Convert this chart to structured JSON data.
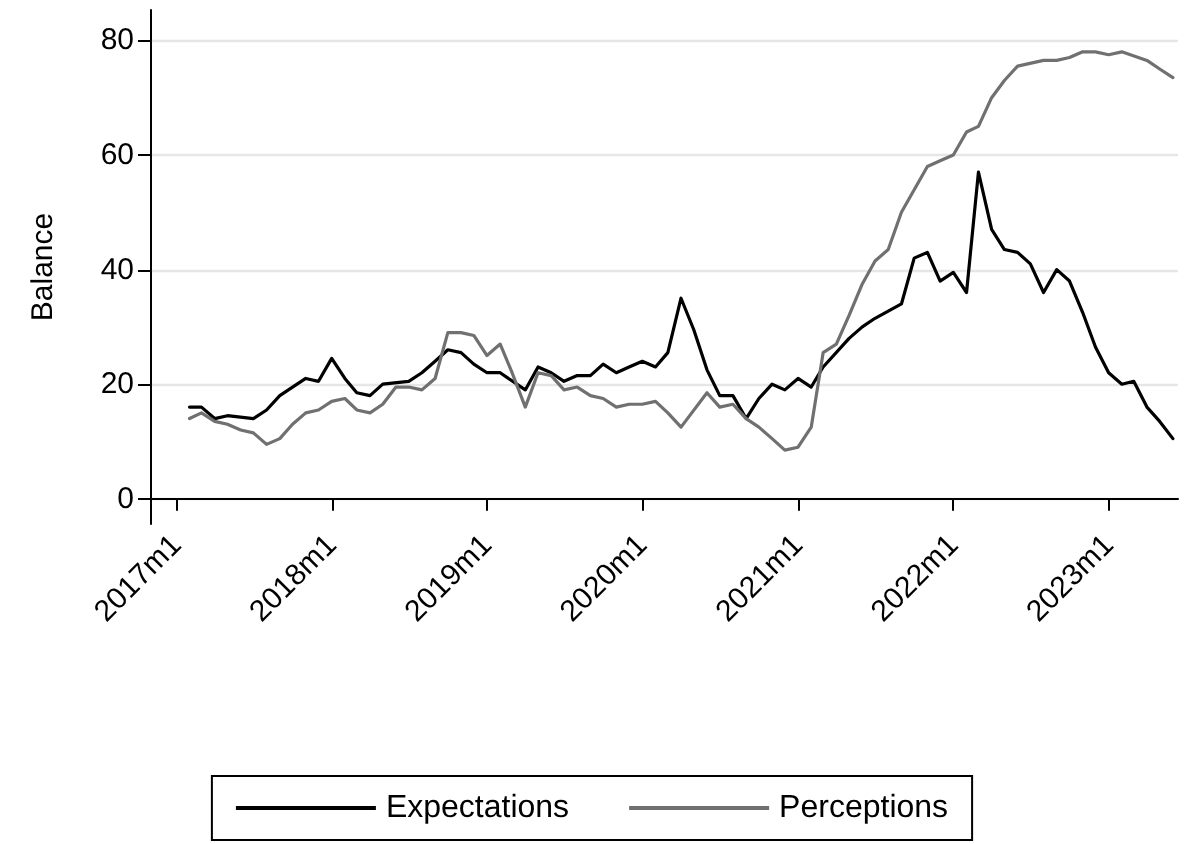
{
  "chart_data": {
    "type": "line",
    "ylabel": "Balance",
    "xlim": [
      "2016-10-31",
      "2023-06-13"
    ],
    "ylim": [
      -4.4,
      85.3
    ],
    "xticks": [
      {
        "value": "2017-01",
        "label": "2017m1"
      },
      {
        "value": "2018-01",
        "label": "2018m1"
      },
      {
        "value": "2019-01",
        "label": "2019m1"
      },
      {
        "value": "2020-01",
        "label": "2020m1"
      },
      {
        "value": "2021-01",
        "label": "2021m1"
      },
      {
        "value": "2022-01",
        "label": "2022m1"
      },
      {
        "value": "2023-01",
        "label": "2023m1"
      }
    ],
    "yticks": [
      0,
      20,
      40,
      60,
      80
    ],
    "grid": "y",
    "legend": "bottom",
    "marker": "none",
    "line_style": "solid",
    "series": [
      {
        "name": "Expectations",
        "color": "#000000",
        "x": [
          "2017-02",
          "2017-03",
          "2017-04",
          "2017-05",
          "2017-07",
          "2017-08",
          "2017-09",
          "2017-11",
          "2017-12",
          "2018-01",
          "2018-02",
          "2018-03",
          "2018-04",
          "2018-05",
          "2018-07",
          "2018-08",
          "2018-09",
          "2018-10",
          "2018-11",
          "2018-12",
          "2019-01",
          "2019-02",
          "2019-04",
          "2019-05",
          "2019-06",
          "2019-07",
          "2019-08",
          "2019-09",
          "2019-10",
          "2019-11",
          "2019-12",
          "2020-01",
          "2020-02",
          "2020-03",
          "2020-04",
          "2020-05",
          "2020-06",
          "2020-07",
          "2020-08",
          "2020-09",
          "2020-10",
          "2020-11",
          "2020-12",
          "2021-01",
          "2021-02",
          "2021-03",
          "2021-05",
          "2021-06",
          "2021-07",
          "2021-09",
          "2021-10",
          "2021-11",
          "2021-12",
          "2022-01",
          "2022-02",
          "2022-03",
          "2022-04",
          "2022-05",
          "2022-06",
          "2022-07",
          "2022-08",
          "2022-09",
          "2022-10",
          "2022-11",
          "2022-12",
          "2023-01",
          "2023-02",
          "2023-03",
          "2023-04",
          "2023-05",
          "2023-06"
        ],
        "values": [
          16,
          16,
          14,
          14.5,
          14,
          15.5,
          18,
          21,
          20.5,
          24.5,
          21,
          18.5,
          18,
          20,
          20.5,
          22,
          24,
          26,
          25.5,
          23.5,
          22,
          22,
          19,
          23,
          22,
          20.5,
          21.5,
          21.5,
          23.5,
          22,
          23,
          24,
          23,
          25.5,
          35,
          29.5,
          22.5,
          18,
          18,
          14,
          17.5,
          20,
          19,
          21,
          19.5,
          23,
          28,
          30,
          31.5,
          34,
          42,
          43,
          38,
          39.5,
          36,
          57,
          47,
          43.5,
          43,
          41,
          36,
          40,
          38,
          32.5,
          26.5,
          22,
          20,
          20.5,
          16,
          13.5,
          10.5
        ]
      },
      {
        "name": "Perceptions",
        "color": "#707070",
        "x": [
          "2017-02",
          "2017-03",
          "2017-04",
          "2017-05",
          "2017-06",
          "2017-07",
          "2017-08",
          "2017-09",
          "2017-10",
          "2017-11",
          "2017-12",
          "2018-01",
          "2018-02",
          "2018-03",
          "2018-04",
          "2018-05",
          "2018-06",
          "2018-07",
          "2018-08",
          "2018-09",
          "2018-10",
          "2018-11",
          "2018-12",
          "2019-01",
          "2019-02",
          "2019-03",
          "2019-04",
          "2019-05",
          "2019-06",
          "2019-07",
          "2019-08",
          "2019-09",
          "2019-10",
          "2019-11",
          "2019-12",
          "2020-01",
          "2020-02",
          "2020-03",
          "2020-04",
          "2020-06",
          "2020-07",
          "2020-08",
          "2020-09",
          "2020-10",
          "2020-11",
          "2020-12",
          "2021-01",
          "2021-02",
          "2021-03",
          "2021-04",
          "2021-05",
          "2021-06",
          "2021-07",
          "2021-08",
          "2021-09",
          "2021-11",
          "2021-12",
          "2022-01",
          "2022-02",
          "2022-03",
          "2022-04",
          "2022-05",
          "2022-06",
          "2022-08",
          "2022-09",
          "2022-10",
          "2022-11",
          "2022-12",
          "2023-01",
          "2023-02",
          "2023-04",
          "2023-05",
          "2023-06"
        ],
        "values": [
          14,
          15,
          13.5,
          13,
          12,
          11.5,
          9.5,
          10.5,
          13,
          15,
          15.5,
          17,
          17.5,
          15.5,
          15,
          16.5,
          19.5,
          19.5,
          19,
          21,
          29,
          29,
          28.5,
          25,
          27,
          22,
          16,
          22,
          21.5,
          19,
          19.5,
          18,
          17.5,
          16,
          16.5,
          16.5,
          17,
          15,
          12.5,
          18.5,
          16,
          16.5,
          14,
          12.5,
          10.5,
          8.5,
          9,
          12.5,
          25.5,
          27,
          32,
          37.5,
          41.5,
          43.5,
          50,
          58,
          59,
          60,
          64,
          65,
          70,
          73,
          75.5,
          76.5,
          76.5,
          77,
          78,
          78,
          77.5,
          78,
          76.5,
          75,
          73.5
        ]
      }
    ]
  }
}
